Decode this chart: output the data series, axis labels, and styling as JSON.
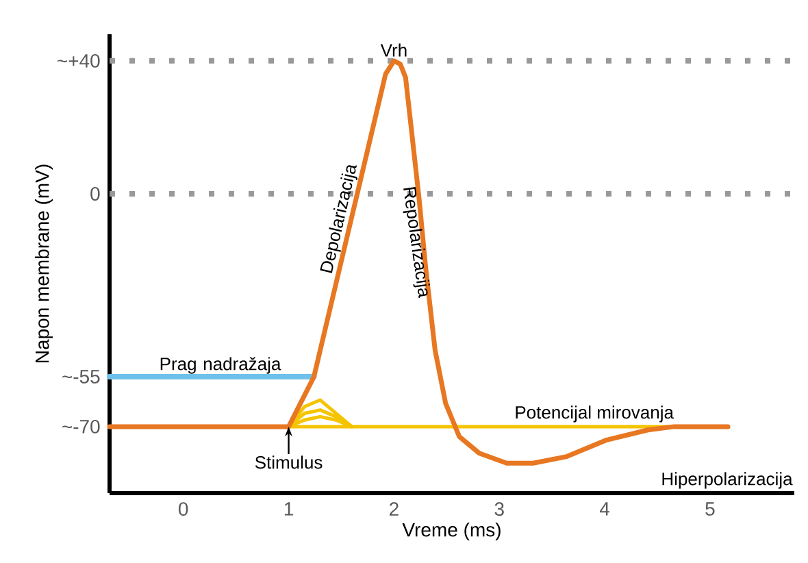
{
  "chart_data": {
    "type": "line",
    "xlabel": "Vreme (ms)",
    "ylabel": "Napon membrane (mV)",
    "xlim": [
      -0.7,
      5.8
    ],
    "ylim": [
      -90,
      48
    ],
    "xticks": [
      0,
      1,
      2,
      3,
      4,
      5
    ],
    "yticks": [
      {
        "value": -70,
        "label": "~-70"
      },
      {
        "value": -55,
        "label": "~-55"
      },
      {
        "value": 0,
        "label": "0"
      },
      {
        "value": 40,
        "label": "~+40"
      }
    ],
    "series": [
      {
        "color": "#f5c400",
        "x": [
          1.0,
          4.66
        ],
        "values": [
          -70,
          -70
        ]
      },
      {
        "color": "#f5c400",
        "x": [
          1.0,
          1.15,
          1.3,
          1.45,
          1.6
        ],
        "values": [
          -70,
          -64,
          -62,
          -66,
          -70
        ]
      },
      {
        "color": "#f5c400",
        "x": [
          1.0,
          1.15,
          1.3,
          1.45,
          1.6
        ],
        "values": [
          -70,
          -66,
          -65,
          -67,
          -70
        ]
      },
      {
        "color": "#f5c400",
        "x": [
          1.0,
          1.15,
          1.3,
          1.45,
          1.6
        ],
        "values": [
          -70,
          -68,
          -67,
          -68,
          -70
        ]
      },
      {
        "color": "#6ec1ea",
        "x": [
          -0.7,
          1.24
        ],
        "values": [
          -55,
          -55
        ]
      },
      {
        "color": "#e87722",
        "x": [
          -0.7,
          1.0,
          1.24,
          1.92,
          2.0,
          2.06,
          2.11,
          2.17,
          2.24,
          2.3,
          2.39,
          2.49,
          2.62,
          2.81,
          3.07,
          3.32,
          3.64,
          4.02,
          4.41,
          4.66,
          5.17
        ],
        "values": [
          -70,
          -70,
          -55,
          36,
          40,
          39,
          35,
          18,
          -2,
          -22,
          -47,
          -63,
          -73,
          -78,
          -81,
          -81,
          -79,
          -74,
          -71,
          -70,
          -70
        ]
      }
    ],
    "ref_lines": [
      {
        "axis": "y",
        "value": 40,
        "color": "#999999",
        "line_style": "dotted"
      },
      {
        "axis": "y",
        "value": 0,
        "color": "#999999",
        "line_style": "dotted"
      }
    ],
    "annotations": [
      {
        "text": "Vrh",
        "x": 2.0,
        "y": 40
      },
      {
        "text": "Depolarizacija",
        "x": 1.6,
        "y": -5
      },
      {
        "text": "Repolarizacija",
        "x": 2.28,
        "y": -10
      },
      {
        "text": "Prag nadražaja",
        "x": 0.35,
        "y": -55
      },
      {
        "text": "Potencijal mirovanja",
        "x": 3.9,
        "y": -70
      },
      "Hiperpolarizacija",
      {
        "text": "Stimulus",
        "x": 1.0,
        "y": -70
      }
    ],
    "grid": false,
    "marker": "none",
    "line_style": "solid"
  }
}
